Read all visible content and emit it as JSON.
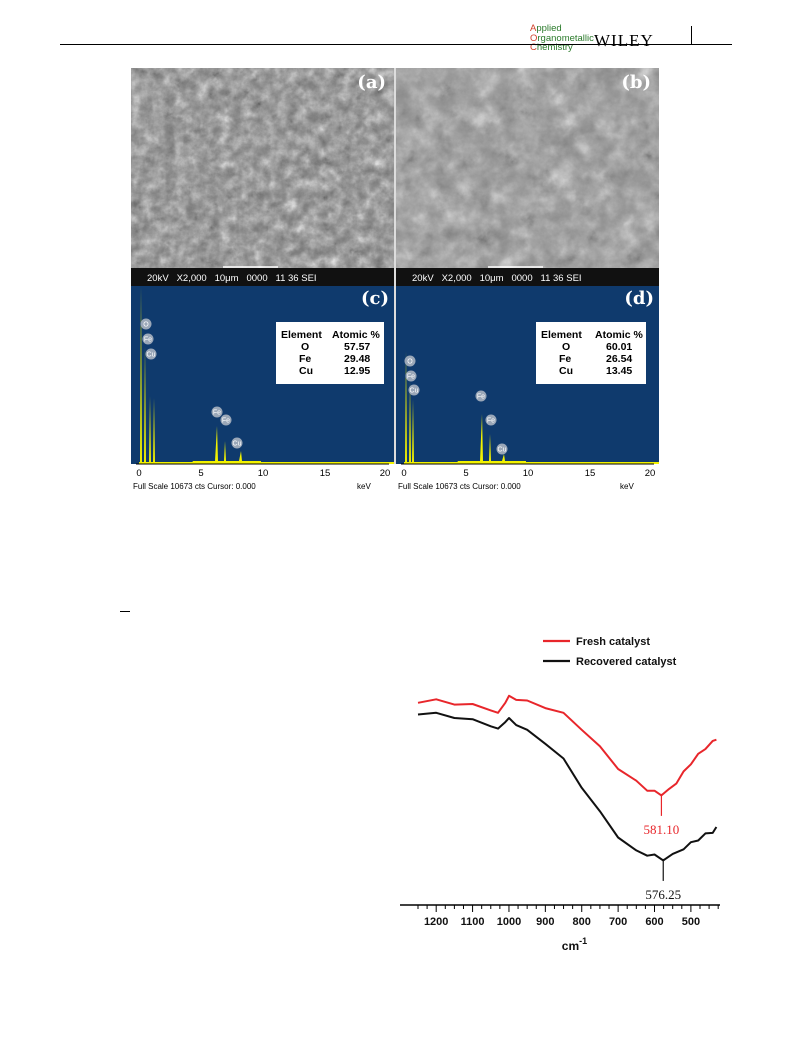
{
  "header": {
    "journal_line1_cap": "A",
    "journal_line1_rest": "pplied",
    "journal_line2_cap": "O",
    "journal_line2_rest": "rganometallic",
    "journal_line3_cap": "C",
    "journal_line3_rest": "hemistry",
    "publisher": "WILEY"
  },
  "sem": {
    "panels": [
      {
        "label": "(a)",
        "info": "20kV   X2,000   10μm   0000   11 36 SEI"
      },
      {
        "label": "(b)",
        "info": "20kV   X2,000   10μm   0000   11 36 SEI"
      }
    ]
  },
  "eds": {
    "panels": [
      {
        "label": "(c)",
        "table_head": [
          "Element",
          "Atomic %"
        ],
        "rows": [
          [
            "O",
            "57.57"
          ],
          [
            "Fe",
            "29.48"
          ],
          [
            "Cu",
            "12.95"
          ]
        ],
        "footer": "Full Scale 10673 cts Cursor: 0.000",
        "unit": "keV",
        "ticks": [
          "0",
          "5",
          "10",
          "15",
          "20"
        ]
      },
      {
        "label": "(d)",
        "table_head": [
          "Element",
          "Atomic %"
        ],
        "rows": [
          [
            "O",
            "60.01"
          ],
          [
            "Fe",
            "26.54"
          ],
          [
            "Cu",
            "13.45"
          ]
        ],
        "footer": "Full Scale 10673 cts Cursor: 0.000",
        "unit": "keV",
        "ticks": [
          "0",
          "5",
          "10",
          "15",
          "20"
        ]
      }
    ],
    "peak_labels": [
      "O",
      "Fe",
      "Cu",
      "Fe",
      "Fe",
      "Cu"
    ]
  },
  "chart_data": {
    "type": "line",
    "xlabel": "cm-1",
    "x_ticks": [
      1200,
      1100,
      1000,
      900,
      800,
      700,
      600,
      500
    ],
    "xlim": [
      1250,
      420
    ],
    "legend_placement": "top-right",
    "series": [
      {
        "name": "Fresh catalyst",
        "color": "#e8262b",
        "x": [
          1250,
          1200,
          1150,
          1100,
          1050,
          1030,
          1010,
          1000,
          980,
          950,
          900,
          850,
          800,
          750,
          700,
          650,
          620,
          600,
          581,
          560,
          540,
          520,
          500,
          480,
          460,
          440,
          430
        ],
        "y": [
          95.5,
          95.6,
          95.2,
          94.8,
          94.2,
          93.3,
          95.5,
          96.2,
          96.0,
          95.4,
          94.6,
          93.3,
          90.9,
          87.6,
          84.2,
          81.7,
          80.5,
          80.0,
          79.7,
          80.3,
          81.7,
          83.3,
          85.0,
          86.3,
          87.6,
          88.5,
          89.2
        ]
      },
      {
        "name": "Recovered catalyst",
        "color": "#111111",
        "x": [
          1250,
          1200,
          1150,
          1100,
          1050,
          1030,
          1010,
          1000,
          980,
          950,
          900,
          850,
          800,
          750,
          700,
          650,
          620,
          600,
          576,
          550,
          520,
          500,
          480,
          460,
          440,
          430
        ],
        "y": [
          93.5,
          93.3,
          92.9,
          92.2,
          91.5,
          90.6,
          92.2,
          92.4,
          91.7,
          90.4,
          88.5,
          85.5,
          81.0,
          76.5,
          72.5,
          69.8,
          69.4,
          69.1,
          68.6,
          69.2,
          70.5,
          71.2,
          72.0,
          72.7,
          73.3,
          73.8
        ]
      }
    ],
    "annotations": [
      {
        "text": "581.10",
        "x": 581,
        "series": "Fresh catalyst",
        "color": "#e8262b"
      },
      {
        "text": "576.25",
        "x": 576,
        "series": "Recovered catalyst",
        "color": "#111111"
      }
    ]
  }
}
